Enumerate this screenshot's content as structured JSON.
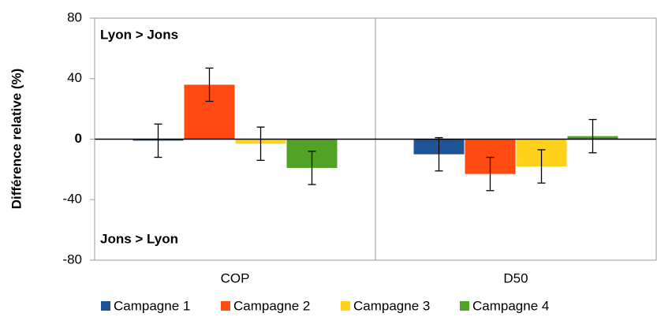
{
  "chart_data": {
    "type": "bar",
    "categories": [
      "COP",
      "D50"
    ],
    "ylabel": "Différence relative  (%)",
    "annotations": [
      "Lyon > Jons",
      "Jons > Lyon"
    ],
    "ylim": [
      -80,
      80
    ],
    "yticks": [
      -80,
      -40,
      0,
      40,
      80
    ],
    "legend": "bottom",
    "series": [
      {
        "name": "Campagne 1",
        "color": "#1f5597",
        "values": [
          -1,
          -10
        ],
        "errors": [
          11,
          11
        ]
      },
      {
        "name": "Campagne 2",
        "color": "#ff4a12",
        "values": [
          36,
          -23
        ],
        "errors": [
          11,
          11
        ]
      },
      {
        "name": "Campagne 3",
        "color": "#ffd11a",
        "values": [
          -3,
          -18
        ],
        "errors": [
          11,
          11
        ]
      },
      {
        "name": "Campagne 4",
        "color": "#52a227",
        "values": [
          -19,
          2
        ],
        "errors": [
          11,
          11
        ]
      }
    ]
  }
}
